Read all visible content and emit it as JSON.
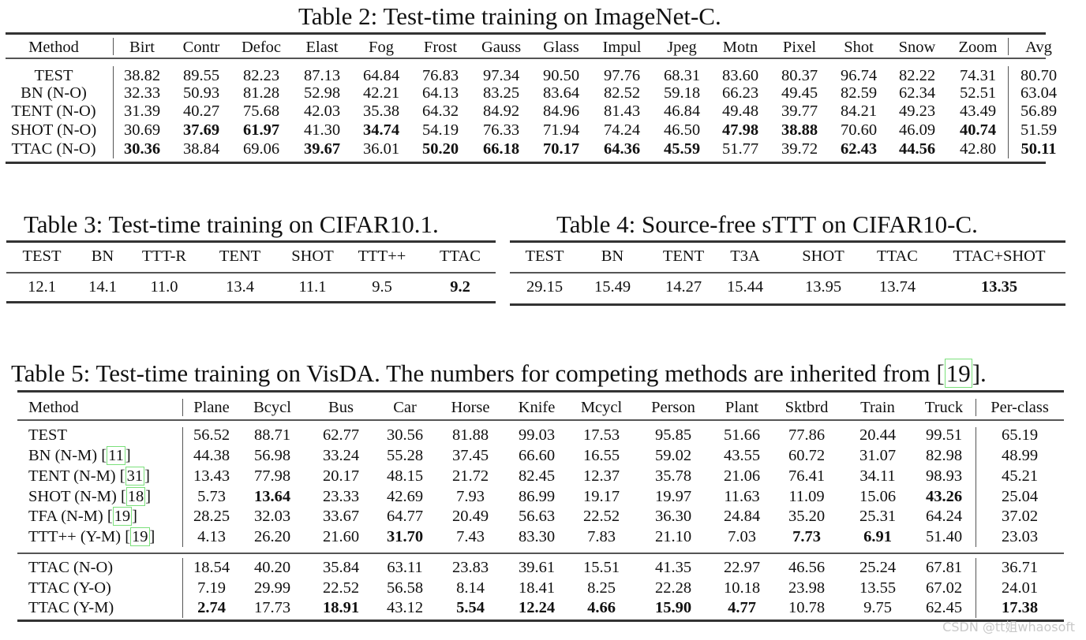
{
  "table2": {
    "caption": "Table 2: Test-time training on ImageNet-C.",
    "headers": [
      "Method",
      "Birt",
      "Contr",
      "Defoc",
      "Elast",
      "Fog",
      "Frost",
      "Gauss",
      "Glass",
      "Impul",
      "Jpeg",
      "Motn",
      "Pixel",
      "Shot",
      "Snow",
      "Zoom",
      "Avg"
    ],
    "rows": [
      {
        "method": "TEST",
        "values": [
          "38.82",
          "89.55",
          "82.23",
          "87.13",
          "64.84",
          "76.83",
          "97.34",
          "90.50",
          "97.76",
          "68.31",
          "83.60",
          "80.37",
          "96.74",
          "82.22",
          "74.31",
          "80.70"
        ],
        "bold": []
      },
      {
        "method": "BN (N-O)",
        "values": [
          "32.33",
          "50.93",
          "81.28",
          "52.98",
          "42.21",
          "64.13",
          "83.25",
          "83.64",
          "82.52",
          "59.18",
          "66.23",
          "49.45",
          "82.59",
          "62.34",
          "52.51",
          "63.04"
        ],
        "bold": []
      },
      {
        "method": "TENT (N-O)",
        "values": [
          "31.39",
          "40.27",
          "75.68",
          "42.03",
          "35.38",
          "64.32",
          "84.92",
          "84.96",
          "81.43",
          "46.84",
          "49.48",
          "39.77",
          "84.21",
          "49.23",
          "43.49",
          "56.89"
        ],
        "bold": []
      },
      {
        "method": "SHOT (N-O)",
        "values": [
          "30.69",
          "37.69",
          "61.97",
          "41.30",
          "34.74",
          "54.19",
          "76.33",
          "71.94",
          "74.24",
          "46.50",
          "47.98",
          "38.88",
          "70.60",
          "46.09",
          "40.74",
          "51.59"
        ],
        "bold": [
          1,
          2,
          4,
          10,
          11,
          14
        ]
      },
      {
        "method": "TTAC (N-O)",
        "values": [
          "30.36",
          "38.84",
          "69.06",
          "39.67",
          "36.01",
          "50.20",
          "66.18",
          "70.17",
          "64.36",
          "45.59",
          "51.77",
          "39.72",
          "62.43",
          "44.56",
          "42.80",
          "50.11"
        ],
        "bold": [
          0,
          3,
          5,
          6,
          7,
          8,
          9,
          12,
          13,
          15
        ]
      }
    ]
  },
  "table3": {
    "caption": "Table 3: Test-time training on CIFAR10.1.",
    "headers": [
      "TEST",
      "BN",
      "TTT-R",
      "TENT",
      "SHOT",
      "TTT++",
      "TTAC"
    ],
    "values": [
      "12.1",
      "14.1",
      "11.0",
      "13.4",
      "11.1",
      "9.5",
      "9.2"
    ],
    "bold": [
      6
    ]
  },
  "table4": {
    "caption": "Table 4: Source-free sTTT on CIFAR10-C.",
    "headers": [
      "TEST",
      "BN",
      "TENT",
      "T3A",
      "SHOT",
      "TTAC",
      "TTAC+SHOT"
    ],
    "values": [
      "29.15",
      "15.49",
      "14.27",
      "15.44",
      "13.95",
      "13.74",
      "13.35"
    ],
    "bold": [
      6
    ]
  },
  "table5": {
    "caption_pre": "Table 5: Test-time training on VisDA. The numbers for competing methods are inherited from [",
    "caption_cite": "19",
    "caption_post": "].",
    "headers": [
      "Method",
      "Plane",
      "Bcycl",
      "Bus",
      "Car",
      "Horse",
      "Knife",
      "Mcycl",
      "Person",
      "Plant",
      "Sktbrd",
      "Train",
      "Truck",
      "Per-class"
    ],
    "group1": [
      {
        "method": "TEST",
        "cite": "",
        "values": [
          "56.52",
          "88.71",
          "62.77",
          "30.56",
          "81.88",
          "99.03",
          "17.53",
          "95.85",
          "51.66",
          "77.86",
          "20.44",
          "99.51",
          "65.19"
        ],
        "bold": []
      },
      {
        "method": "BN (N-M) ",
        "cite": "11",
        "values": [
          "44.38",
          "56.98",
          "33.24",
          "55.28",
          "37.45",
          "66.60",
          "16.55",
          "59.02",
          "43.55",
          "60.72",
          "31.07",
          "82.98",
          "48.99"
        ],
        "bold": []
      },
      {
        "method": "TENT (N-M) ",
        "cite": "31",
        "values": [
          "13.43",
          "77.98",
          "20.17",
          "48.15",
          "21.72",
          "82.45",
          "12.37",
          "35.78",
          "21.06",
          "76.41",
          "34.11",
          "98.93",
          "45.21"
        ],
        "bold": []
      },
      {
        "method": "SHOT (N-M) ",
        "cite": "18",
        "values": [
          "5.73",
          "13.64",
          "23.33",
          "42.69",
          "7.93",
          "86.99",
          "19.17",
          "19.97",
          "11.63",
          "11.09",
          "15.06",
          "43.26",
          "25.04"
        ],
        "bold": [
          1,
          11
        ]
      },
      {
        "method": "TFA (N-M) ",
        "cite": "19",
        "values": [
          "28.25",
          "32.03",
          "33.67",
          "64.77",
          "20.49",
          "56.63",
          "22.52",
          "36.30",
          "24.84",
          "35.20",
          "25.31",
          "64.24",
          "37.02"
        ],
        "bold": []
      },
      {
        "method": "TTT++ (Y-M) ",
        "cite": "19",
        "values": [
          "4.13",
          "26.20",
          "21.60",
          "31.70",
          "7.43",
          "83.30",
          "7.83",
          "21.10",
          "7.03",
          "7.73",
          "6.91",
          "51.40",
          "23.03"
        ],
        "bold": [
          3,
          9,
          10
        ]
      }
    ],
    "group2": [
      {
        "method": "TTAC (N-O)",
        "cite": "",
        "values": [
          "18.54",
          "40.20",
          "35.84",
          "63.11",
          "23.83",
          "39.61",
          "15.51",
          "41.35",
          "22.97",
          "46.56",
          "25.24",
          "67.81",
          "36.71"
        ],
        "bold": []
      },
      {
        "method": "TTAC (Y-O)",
        "cite": "",
        "values": [
          "7.19",
          "29.99",
          "22.52",
          "56.58",
          "8.14",
          "18.41",
          "8.25",
          "22.28",
          "10.18",
          "23.98",
          "13.55",
          "67.02",
          "24.01"
        ],
        "bold": []
      },
      {
        "method": "TTAC (Y-M)",
        "cite": "",
        "values": [
          "2.74",
          "17.73",
          "18.91",
          "43.12",
          "5.54",
          "12.24",
          "4.66",
          "15.90",
          "4.77",
          "10.78",
          "9.75",
          "62.45",
          "17.38"
        ],
        "bold": [
          0,
          2,
          4,
          5,
          6,
          7,
          8,
          12
        ]
      }
    ]
  },
  "watermark": "CSDN @tt姐whaosoft"
}
